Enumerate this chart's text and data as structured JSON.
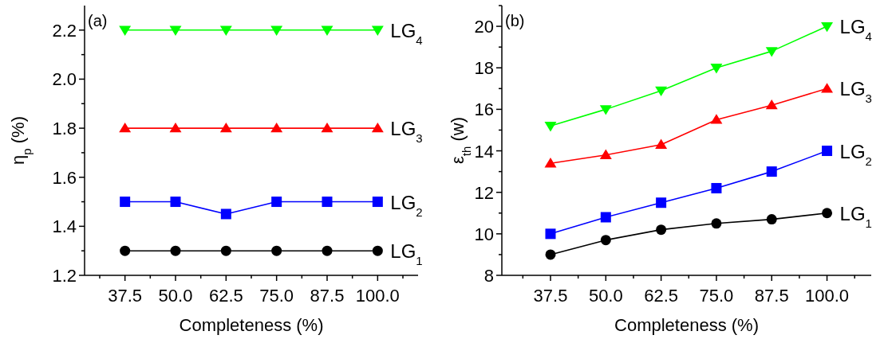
{
  "chart_data": [
    {
      "type": "line",
      "xlabel": "Completeness (%)",
      "ylabel": "η$_{p}$ (%)",
      "annotations": [
        "(a)"
      ],
      "x": [
        37.5,
        50,
        62.5,
        75,
        87.5,
        100
      ],
      "xlim": [
        27.5,
        110
      ],
      "xticks": [
        37.5,
        {
          "value": 50,
          "label": "50.0"
        },
        62.5,
        {
          "value": 75,
          "label": "75.0"
        },
        87.5,
        {
          "value": 100,
          "label": "100.0"
        }
      ],
      "ylim": [
        1.2,
        2.3
      ],
      "yticks": [
        1.2,
        1.4,
        1.6,
        1.8,
        {
          "value": 2,
          "label": "2.0"
        },
        2.2
      ],
      "line_style": "solid",
      "series": [
        {
          "name": "LG$_{1}$",
          "color": "#000000",
          "marker": "circle",
          "values": [
            1.3,
            1.3,
            1.3,
            1.3,
            1.3,
            1.3
          ]
        },
        {
          "name": "LG$_{2}$",
          "color": "#0000ff",
          "marker": "square",
          "values": [
            1.5,
            1.5,
            1.45,
            1.5,
            1.5,
            1.5
          ]
        },
        {
          "name": "LG$_{3}$",
          "color": "#ff0000",
          "marker": "triangle",
          "values": [
            1.8,
            1.8,
            1.8,
            1.8,
            1.8,
            1.8
          ]
        },
        {
          "name": "LG$_{4}$",
          "color": "#00ff00",
          "marker": "triangle-down",
          "values": [
            2.2,
            2.2,
            2.2,
            2.2,
            2.2,
            2.2
          ]
        }
      ]
    },
    {
      "type": "line",
      "xlabel": "Completeness (%)",
      "ylabel": "ε$_{th}$ (w)",
      "annotations": [
        "(b)"
      ],
      "x": [
        37.5,
        50,
        62.5,
        75,
        87.5,
        100
      ],
      "xlim": [
        26.5,
        110
      ],
      "xticks": [
        37.5,
        {
          "value": 50,
          "label": "50.0"
        },
        62.5,
        {
          "value": 75,
          "label": "75.0"
        },
        87.5,
        {
          "value": 100,
          "label": "100.0"
        }
      ],
      "ylim": [
        8,
        21
      ],
      "yticks": [
        8,
        10,
        12,
        14,
        16,
        18,
        20
      ],
      "line_style": "solid",
      "series": [
        {
          "name": "LG$_{1}$",
          "color": "#000000",
          "marker": "circle",
          "values": [
            9,
            9.7,
            10.2,
            10.5,
            10.7,
            11
          ]
        },
        {
          "name": "LG$_{2}$",
          "color": "#0000ff",
          "marker": "square",
          "values": [
            10,
            10.8,
            11.5,
            12.2,
            13,
            14
          ]
        },
        {
          "name": "LG$_{3}$",
          "color": "#ff0000",
          "marker": "triangle",
          "values": [
            13.4,
            13.8,
            14.3,
            15.5,
            16.2,
            17
          ]
        },
        {
          "name": "LG$_{4}$",
          "color": "#00ff00",
          "marker": "triangle-down",
          "values": [
            15.2,
            16,
            16.9,
            18,
            18.8,
            20
          ]
        }
      ]
    }
  ]
}
